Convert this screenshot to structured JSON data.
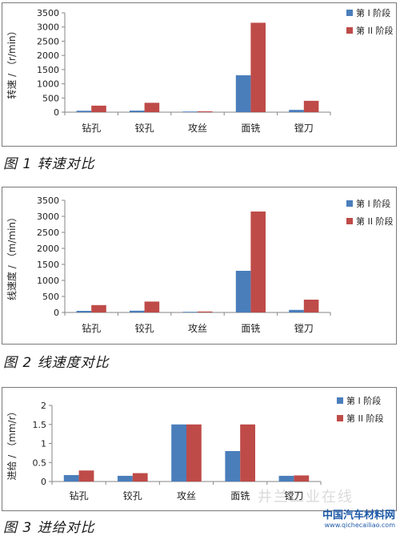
{
  "chart_data": [
    {
      "type": "bar",
      "caption": "图 1  转速对比",
      "ylabel": "转速 / （r/min）",
      "categories": [
        "钻孔",
        "铰孔",
        "攻丝",
        "面铣",
        "镗刀"
      ],
      "yticks": [
        "0",
        "500",
        "1000",
        "1500",
        "2000",
        "2500",
        "3000",
        "3500"
      ],
      "ylim": [
        0,
        3500
      ],
      "series": [
        {
          "name": "第 I 阶段",
          "color": "#4a7ebb",
          "values": [
            50,
            55,
            5,
            1300,
            80
          ]
        },
        {
          "name": "第 II 阶段",
          "color": "#be4b48",
          "values": [
            230,
            330,
            30,
            3150,
            400
          ]
        }
      ],
      "legend": "top-right",
      "grid": false
    },
    {
      "type": "bar",
      "caption": "图 2  线速度对比",
      "ylabel": "线速度 / （m/min）",
      "categories": [
        "钻孔",
        "铰孔",
        "攻丝",
        "面铣",
        "镗刀"
      ],
      "yticks": [
        "0",
        "500",
        "1000",
        "1500",
        "2000",
        "2500",
        "3000",
        "3500"
      ],
      "ylim": [
        0,
        3500
      ],
      "series": [
        {
          "name": "第 I 阶段",
          "color": "#4a7ebb",
          "values": [
            50,
            55,
            5,
            1300,
            80
          ]
        },
        {
          "name": "第 II 阶段",
          "color": "#be4b48",
          "values": [
            230,
            340,
            30,
            3150,
            400
          ]
        }
      ],
      "legend": "top-right",
      "grid": false
    },
    {
      "type": "bar",
      "caption": "图 3  进给对比",
      "ylabel": "进给 / （mm/r）",
      "categories": [
        "钻孔",
        "铰孔",
        "攻丝",
        "面铣",
        "镗刀"
      ],
      "yticks": [
        "0",
        "0.5",
        "1",
        "1.5",
        "2"
      ],
      "ylim": [
        0,
        2
      ],
      "series": [
        {
          "name": "第 I 阶段",
          "color": "#4a7ebb",
          "values": [
            0.17,
            0.15,
            1.5,
            0.8,
            0.15
          ]
        },
        {
          "name": "第 II 阶段",
          "color": "#be4b48",
          "values": [
            0.29,
            0.22,
            1.5,
            1.5,
            0.16
          ]
        }
      ],
      "legend": "top-right",
      "grid": false
    }
  ],
  "watermark": {
    "faint_text": "井兰工业在线",
    "site_name": "中国汽车材料网",
    "site_url": "www.qichecailiao.com"
  }
}
